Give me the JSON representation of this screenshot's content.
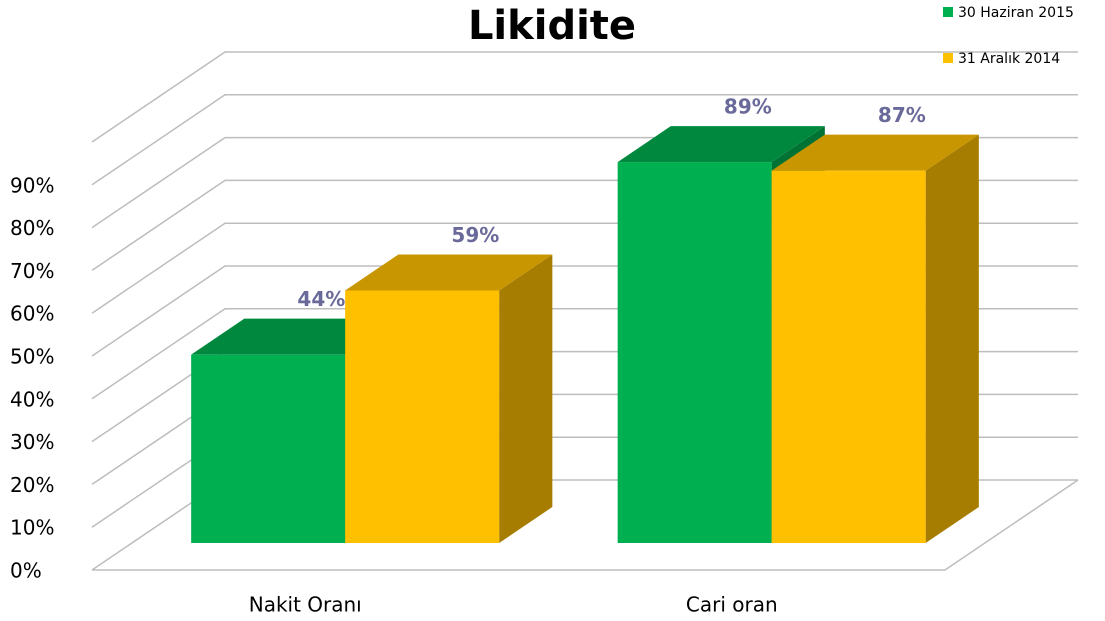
{
  "chart_data": {
    "type": "bar3d",
    "title": "Likidite",
    "categories": [
      "Nakit Oranı",
      "Cari oran"
    ],
    "series": [
      {
        "name": "30 Haziran 2015",
        "color": "#00b050",
        "values": [
          44,
          89
        ],
        "value_labels": [
          "44%",
          "89%"
        ]
      },
      {
        "name": "31 Aralık 2014",
        "color": "#ffc000",
        "values": [
          59,
          87
        ],
        "value_labels": [
          "59%",
          "87%"
        ]
      }
    ],
    "ylim": [
      0,
      100
    ],
    "yticks": [
      {
        "value": 0,
        "label": "0%"
      },
      {
        "value": 10,
        "label": "10%"
      },
      {
        "value": 20,
        "label": "20%"
      },
      {
        "value": 30,
        "label": "30%"
      },
      {
        "value": 40,
        "label": "40%"
      },
      {
        "value": 50,
        "label": "50%"
      },
      {
        "value": 60,
        "label": "60%"
      },
      {
        "value": 70,
        "label": "70%"
      },
      {
        "value": 80,
        "label": "80%"
      },
      {
        "value": 90,
        "label": "90%"
      }
    ],
    "grid": true,
    "legend": "top-right"
  }
}
